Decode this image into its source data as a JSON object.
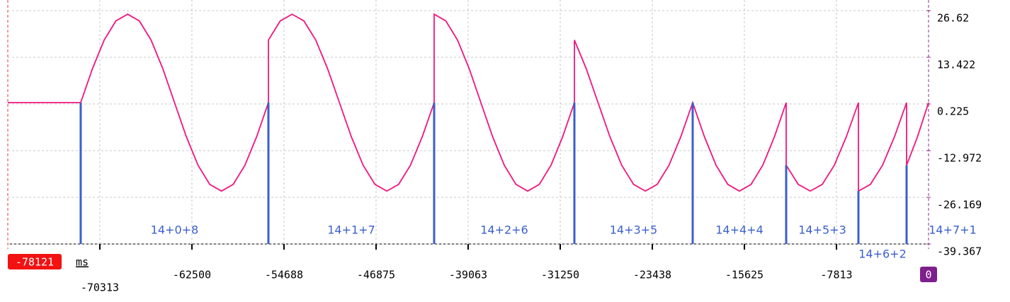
{
  "chart_data": {
    "type": "line",
    "x_label": "ms",
    "xlim": [
      -78121,
      0
    ],
    "xticks": [
      -70313,
      -62500,
      -54688,
      -46875,
      -39063,
      -31250,
      -23438,
      -15625,
      -7813
    ],
    "ylim": [
      -39.367,
      26.62
    ],
    "yticks": [
      -39.367,
      -26.169,
      -12.972,
      0.225,
      13.422,
      26.62
    ],
    "grid": true,
    "x": [
      -78121,
      -71935,
      -70940,
      -69944,
      -68949,
      -67953,
      -66958,
      -65963,
      -64967,
      -63972,
      -62976,
      -61981,
      -60986,
      -59990,
      -58995,
      -57999,
      -57004,
      -56009,
      -56009,
      -55005,
      -54000,
      -52996,
      -51991,
      -50987,
      -49983,
      -48978,
      -47974,
      -46969,
      -45965,
      -44960,
      -43956,
      -42951,
      -41947,
      -41947,
      -40955,
      -39964,
      -38972,
      -37981,
      -36989,
      -35998,
      -35006,
      -34014,
      -33023,
      -32031,
      -31040,
      -30048,
      -30048,
      -29044,
      -28041,
      -27037,
      -26034,
      -25030,
      -24026,
      -23023,
      -22019,
      -21016,
      -20012,
      -19020,
      -18029,
      -17037,
      -16045,
      -15054,
      -14062,
      -13071,
      -12079,
      -12079,
      -11058,
      -10036,
      -9015,
      -7993,
      -6972,
      -5950,
      -5950,
      -4928,
      -3906,
      -2885,
      -1863,
      -1863,
      -932,
      0
    ],
    "series": [
      {
        "color": "#f0167e",
        "values": [
          0.6,
          0.6,
          10.2,
          18.3,
          23.7,
          25.6,
          23.7,
          18.3,
          10.2,
          0.6,
          -9,
          -17.1,
          -22.5,
          -24.4,
          -22.5,
          -17.1,
          -9,
          0.6,
          18.3,
          23.7,
          25.6,
          23.7,
          18.3,
          10.2,
          0.6,
          -9,
          -17.1,
          -22.5,
          -24.4,
          -22.5,
          -17.1,
          -9,
          0.6,
          25.6,
          23.7,
          18.3,
          10.2,
          0.6,
          -9,
          -17.1,
          -22.5,
          -24.4,
          -22.5,
          -17.1,
          -9,
          0.6,
          18.3,
          10.2,
          0.6,
          -9,
          -17.1,
          -22.5,
          -24.4,
          -22.5,
          -17.1,
          -9,
          0.6,
          -9,
          -17.1,
          -22.5,
          -24.4,
          -22.5,
          -17.1,
          -9,
          0.6,
          -17.1,
          -22.5,
          -24.4,
          -22.5,
          -17.1,
          -9,
          0.6,
          -24.4,
          -22.5,
          -17.1,
          -9,
          0.6,
          -17.1,
          -9,
          0.6
        ]
      }
    ],
    "markers": {
      "color": "#3a5fcd",
      "x": [
        -71935,
        -56009,
        -41947,
        -30048,
        -20012,
        -12079,
        -5950,
        -1863
      ],
      "labels": [
        "14+0+8",
        "14+1+7",
        "14+2+6",
        "14+3+5",
        "14+4+4",
        "14+5+3",
        "14+6+2",
        "14+7+1"
      ]
    }
  }
}
